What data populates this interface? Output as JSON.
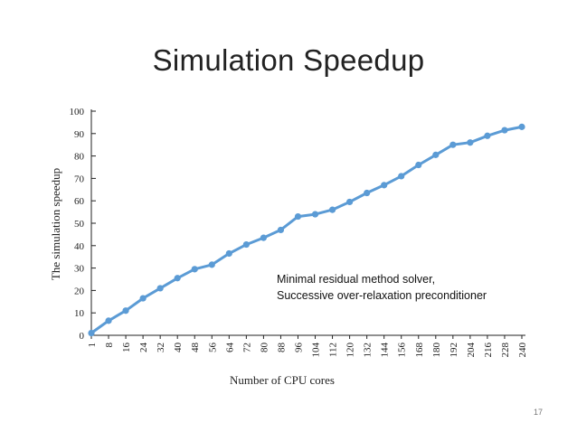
{
  "slide": {
    "title": "Simulation Speedup",
    "page_number": "17"
  },
  "colors": {
    "series": "#5b9bd5",
    "axis": "#222222"
  },
  "chart_data": {
    "type": "line",
    "title": "",
    "xlabel": "Number of CPU cores",
    "ylabel": "The simulation speedup",
    "x": [
      "1",
      "8",
      "16",
      "24",
      "32",
      "40",
      "48",
      "56",
      "64",
      "72",
      "80",
      "88",
      "96",
      "104",
      "112",
      "120",
      "132",
      "144",
      "156",
      "168",
      "180",
      "192",
      "204",
      "216",
      "228",
      "240"
    ],
    "series": [
      {
        "values": [
          1,
          6.5,
          11,
          16.5,
          21,
          25.5,
          29.5,
          31.5,
          36.5,
          40.5,
          43.5,
          47,
          53,
          54,
          56,
          59.5,
          63.5,
          67,
          71,
          76,
          80.5,
          85,
          86,
          89,
          91.5,
          93
        ]
      }
    ],
    "ylim": [
      0,
      100
    ],
    "yticks": [
      "0",
      "10",
      "20",
      "30",
      "40",
      "50",
      "60",
      "70",
      "80",
      "90",
      "100"
    ],
    "grid": false,
    "legend": "none",
    "annotation": [
      "Minimal residual method solver,",
      "Successive over-relaxation preconditioner"
    ]
  }
}
